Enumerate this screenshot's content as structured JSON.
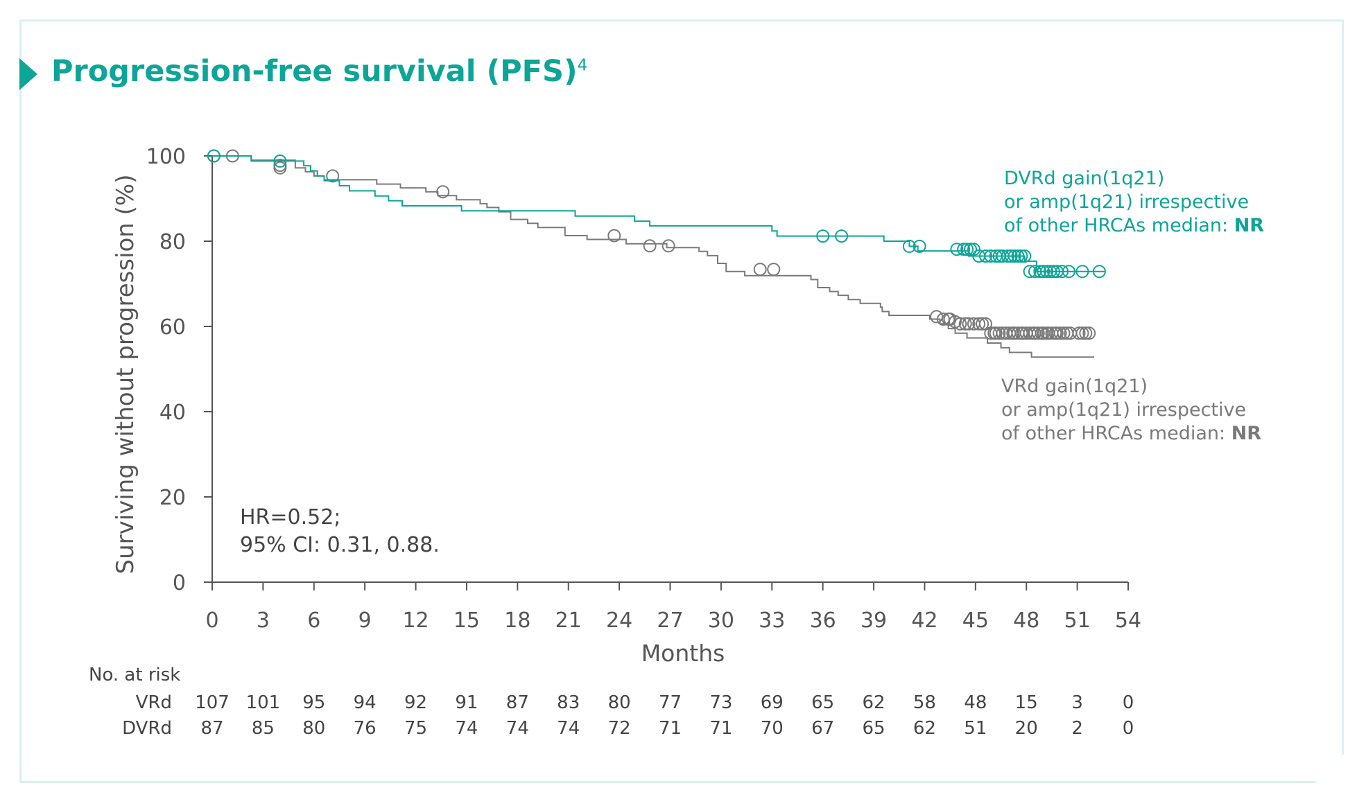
{
  "title": "Progression-free survival (PFS)",
  "title_superscript": "4",
  "colors": {
    "accent": "#0ca598",
    "vrd": "#7a7a7a",
    "axis": "#555555",
    "text": "#444444",
    "border": "#d9f1ee"
  },
  "chart_data": {
    "type": "line",
    "subtype": "kaplan-meier",
    "ylabel": "Surviving without progression (%)",
    "xlabel": "Months",
    "xlim": [
      0,
      54
    ],
    "ylim": [
      0,
      100
    ],
    "xticks": [
      0,
      3,
      6,
      9,
      12,
      15,
      18,
      21,
      24,
      27,
      30,
      33,
      36,
      39,
      42,
      45,
      48,
      51,
      54
    ],
    "yticks": [
      0,
      20,
      40,
      60,
      80,
      100
    ],
    "grid": false,
    "annotation": {
      "line1": "HR=0.52;",
      "line2": "95% CI: 0.31, 0.88."
    },
    "series": [
      {
        "name": "DVRd",
        "label_lines": [
          "DVRd gain(1q21)",
          "or amp(1q21) irrespective",
          "of other HRCAs median: "
        ],
        "median": "NR",
        "color": "#0ca598",
        "steps": [
          [
            0,
            100
          ],
          [
            2.3,
            98.8
          ],
          [
            5.4,
            97.7
          ],
          [
            5.8,
            96.5
          ],
          [
            6.2,
            95.3
          ],
          [
            6.6,
            94.2
          ],
          [
            7.5,
            93
          ],
          [
            8.1,
            91.8
          ],
          [
            9.6,
            90.6
          ],
          [
            10.4,
            89.5
          ],
          [
            11.2,
            88.3
          ],
          [
            14.7,
            87.1
          ],
          [
            21.4,
            85.9
          ],
          [
            24.9,
            84.7
          ],
          [
            25.8,
            83.6
          ],
          [
            33,
            82.4
          ],
          [
            33.3,
            81.2
          ],
          [
            39.6,
            80
          ],
          [
            41.1,
            78.8
          ],
          [
            41.6,
            77.7
          ],
          [
            44.6,
            76.5
          ],
          [
            47.9,
            75.3
          ],
          [
            48.6,
            74.1
          ],
          [
            48.6,
            72.9
          ]
        ],
        "censored": [
          [
            0.1,
            100
          ],
          [
            4,
            98.8
          ],
          [
            36,
            81.2
          ],
          [
            37.1,
            81.2
          ],
          [
            41.1,
            78.8
          ],
          [
            41.7,
            78.8
          ],
          [
            43.9,
            78.1
          ],
          [
            44.3,
            78.1
          ],
          [
            44.5,
            78.1
          ],
          [
            44.7,
            78.1
          ],
          [
            44.9,
            78.1
          ],
          [
            45.2,
            76.5
          ],
          [
            45.6,
            76.5
          ],
          [
            45.9,
            76.5
          ],
          [
            46.2,
            76.5
          ],
          [
            46.4,
            76.5
          ],
          [
            46.6,
            76.5
          ],
          [
            46.9,
            76.5
          ],
          [
            47.1,
            76.5
          ],
          [
            47.3,
            76.5
          ],
          [
            47.5,
            76.5
          ],
          [
            47.7,
            76.5
          ],
          [
            47.9,
            76.5
          ],
          [
            48.2,
            72.9
          ],
          [
            48.5,
            72.9
          ],
          [
            48.8,
            72.9
          ],
          [
            49,
            72.9
          ],
          [
            49.2,
            72.9
          ],
          [
            49.4,
            72.9
          ],
          [
            49.6,
            72.9
          ],
          [
            49.8,
            72.9
          ],
          [
            50.1,
            72.9
          ],
          [
            50.5,
            72.9
          ],
          [
            51.3,
            72.9
          ],
          [
            52.3,
            72.9
          ]
        ]
      },
      {
        "name": "VRd",
        "label_lines": [
          "VRd gain(1q21)",
          "or amp(1q21) irrespective",
          "of other HRCAs median: "
        ],
        "median": "NR",
        "color": "#7a7a7a",
        "steps": [
          [
            0,
            100
          ],
          [
            2.3,
            99
          ],
          [
            4.9,
            97.2
          ],
          [
            5.5,
            96.3
          ],
          [
            6,
            95.3
          ],
          [
            6.6,
            94.4
          ],
          [
            9.7,
            93.4
          ],
          [
            11.1,
            92.5
          ],
          [
            12.6,
            91.6
          ],
          [
            13.3,
            90.7
          ],
          [
            14.4,
            89.7
          ],
          [
            15.8,
            88.8
          ],
          [
            16.2,
            87.9
          ],
          [
            16.9,
            86.9
          ],
          [
            17.6,
            85.1
          ],
          [
            18.6,
            84.2
          ],
          [
            19.2,
            83.2
          ],
          [
            20.8,
            81.3
          ],
          [
            22.1,
            80.4
          ],
          [
            24.4,
            79.4
          ],
          [
            26.8,
            78.5
          ],
          [
            28.7,
            77.6
          ],
          [
            29.2,
            76.6
          ],
          [
            29.8,
            74.8
          ],
          [
            30.3,
            72.9
          ],
          [
            31.4,
            71.9
          ],
          [
            35.3,
            71
          ],
          [
            35.7,
            69.1
          ],
          [
            36.4,
            68.2
          ],
          [
            36.9,
            67.3
          ],
          [
            37.5,
            66.3
          ],
          [
            38.2,
            65.4
          ],
          [
            39.4,
            64.5
          ],
          [
            39.5,
            63.5
          ],
          [
            39.9,
            62.6
          ],
          [
            42.3,
            61.7
          ],
          [
            42.9,
            60.6
          ],
          [
            43.4,
            59.5
          ],
          [
            43.8,
            58.4
          ],
          [
            44.5,
            57.3
          ],
          [
            45.7,
            56.1
          ],
          [
            46.5,
            55
          ],
          [
            47,
            53.9
          ],
          [
            48.3,
            52.8
          ]
        ],
        "censored": [
          [
            0.1,
            100
          ],
          [
            1.2,
            100
          ],
          [
            4,
            97.8
          ],
          [
            4,
            97.2
          ],
          [
            7.1,
            95.3
          ],
          [
            13.6,
            91.6
          ],
          [
            23.7,
            81.3
          ],
          [
            25.8,
            78.9
          ],
          [
            26.9,
            78.9
          ],
          [
            32.3,
            73.4
          ],
          [
            33.1,
            73.4
          ],
          [
            42.7,
            62.3
          ],
          [
            43.1,
            61.7
          ],
          [
            43.4,
            61.7
          ],
          [
            43.5,
            61.7
          ],
          [
            43.8,
            61.1
          ],
          [
            44.1,
            60.6
          ],
          [
            44.4,
            60.6
          ],
          [
            44.6,
            60.6
          ],
          [
            44.9,
            60.6
          ],
          [
            45.2,
            60.6
          ],
          [
            45.4,
            60.6
          ],
          [
            45.6,
            60.6
          ],
          [
            45.9,
            58.4
          ],
          [
            46.1,
            58.4
          ],
          [
            46.2,
            58.4
          ],
          [
            46.4,
            58.4
          ],
          [
            46.6,
            58.4
          ],
          [
            46.8,
            58.4
          ],
          [
            47,
            58.4
          ],
          [
            47.2,
            58.4
          ],
          [
            47.3,
            58.4
          ],
          [
            47.5,
            58.4
          ],
          [
            47.7,
            58.4
          ],
          [
            47.8,
            58.4
          ],
          [
            48,
            58.4
          ],
          [
            48.2,
            58.4
          ],
          [
            48.4,
            58.4
          ],
          [
            48.5,
            58.4
          ],
          [
            48.7,
            58.4
          ],
          [
            48.9,
            58.4
          ],
          [
            49,
            58.4
          ],
          [
            49.2,
            58.4
          ],
          [
            49.3,
            58.4
          ],
          [
            49.5,
            58.4
          ],
          [
            49.7,
            58.4
          ],
          [
            49.8,
            58.4
          ],
          [
            50,
            58.4
          ],
          [
            50.2,
            58.4
          ],
          [
            50.4,
            58.4
          ],
          [
            50.6,
            58.4
          ],
          [
            51.1,
            58.4
          ],
          [
            51.3,
            58.4
          ],
          [
            51.5,
            58.4
          ],
          [
            51.7,
            58.4
          ]
        ]
      }
    ],
    "risk_table": {
      "header": "No. at risk",
      "rows": [
        {
          "label": "VRd",
          "values": [
            "107",
            "101",
            "95",
            "94",
            "92",
            "91",
            "87",
            "83",
            "80",
            "77",
            "73",
            "69",
            "65",
            "62",
            "58",
            "48",
            "15",
            "3",
            "0"
          ]
        },
        {
          "label": "DVRd",
          "values": [
            "87",
            "85",
            "80",
            "76",
            "75",
            "74",
            "74",
            "74",
            "72",
            "71",
            "71",
            "70",
            "67",
            "65",
            "62",
            "51",
            "20",
            "2",
            "0"
          ]
        }
      ]
    }
  }
}
